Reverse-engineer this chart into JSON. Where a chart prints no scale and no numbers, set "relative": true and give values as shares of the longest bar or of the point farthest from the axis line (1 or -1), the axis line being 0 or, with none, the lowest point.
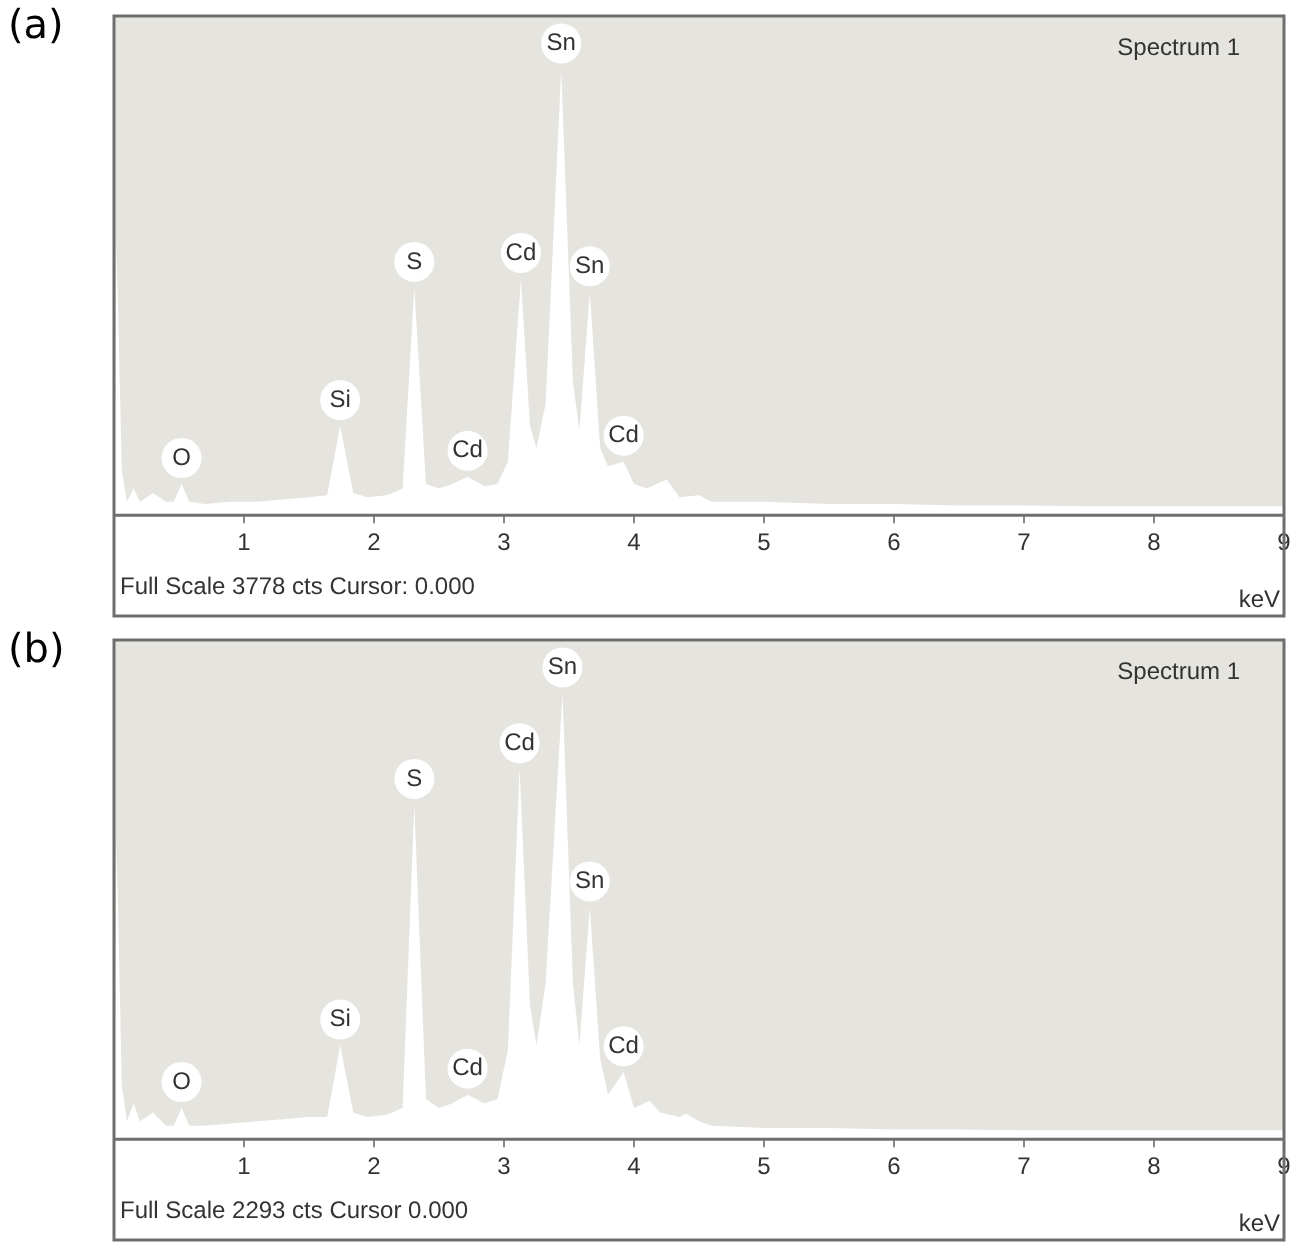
{
  "chart_data": [
    {
      "type": "area",
      "title": "(a)",
      "xlabel": "keV",
      "relative": true,
      "legend": false,
      "marker": "none",
      "xlim": [
        0,
        9
      ],
      "xticks": [
        1,
        2,
        3,
        4,
        5,
        6,
        7,
        8,
        9
      ],
      "x": [
        0.0,
        0.02,
        0.06,
        0.1,
        0.15,
        0.2,
        0.3,
        0.4,
        0.46,
        0.52,
        0.58,
        0.7,
        0.9,
        1.1,
        1.3,
        1.5,
        1.64,
        1.74,
        1.84,
        1.95,
        2.1,
        2.22,
        2.31,
        2.4,
        2.5,
        2.6,
        2.72,
        2.85,
        2.95,
        3.03,
        3.13,
        3.2,
        3.25,
        3.32,
        3.44,
        3.53,
        3.58,
        3.66,
        3.74,
        3.8,
        3.92,
        4.0,
        4.1,
        4.25,
        4.35,
        4.5,
        4.6,
        5.0,
        5.5,
        6.0,
        6.5,
        7.0,
        7.5,
        8.0,
        8.5,
        9.0
      ],
      "series": [
        {
          "color": "#ffffff",
          "values": [
            0,
            0.61,
            0.1,
            0.03,
            0.06,
            0.03,
            0.05,
            0.03,
            0.03,
            0.07,
            0.03,
            0.025,
            0.03,
            0.03,
            0.035,
            0.04,
            0.045,
            0.2,
            0.05,
            0.04,
            0.045,
            0.06,
            0.51,
            0.07,
            0.06,
            0.07,
            0.086,
            0.065,
            0.07,
            0.12,
            0.53,
            0.2,
            0.15,
            0.25,
            1.0,
            0.3,
            0.19,
            0.5,
            0.15,
            0.11,
            0.12,
            0.07,
            0.06,
            0.08,
            0.04,
            0.045,
            0.03,
            0.03,
            0.025,
            0.025,
            0.022,
            0.022,
            0.02,
            0.02,
            0.02,
            0.02
          ]
        }
      ],
      "annotations": [
        "Spectrum 1",
        "Full Scale 3778 cts Cursor: 0.000",
        {
          "text": "O",
          "x": 0.52,
          "y": 0.07
        },
        {
          "text": "Si",
          "x": 1.74,
          "y": 0.2
        },
        {
          "text": "S",
          "x": 2.31,
          "y": 0.51
        },
        {
          "text": "Cd",
          "x": 2.72,
          "y": 0.086
        },
        {
          "text": "Cd",
          "x": 3.13,
          "y": 0.53
        },
        {
          "text": "Sn",
          "x": 3.44,
          "y": 1.0
        },
        {
          "text": "Sn",
          "x": 3.66,
          "y": 0.5
        },
        {
          "text": "Cd",
          "x": 3.92,
          "y": 0.12
        }
      ]
    },
    {
      "type": "area",
      "title": "(b)",
      "xlabel": "keV",
      "relative": true,
      "legend": false,
      "marker": "none",
      "xlim": [
        0,
        9
      ],
      "xticks": [
        1,
        2,
        3,
        4,
        5,
        6,
        7,
        8,
        9
      ],
      "x": [
        0.0,
        0.02,
        0.06,
        0.1,
        0.15,
        0.2,
        0.3,
        0.4,
        0.46,
        0.52,
        0.58,
        0.7,
        0.9,
        1.1,
        1.3,
        1.5,
        1.64,
        1.74,
        1.84,
        1.95,
        2.1,
        2.22,
        2.31,
        2.4,
        2.5,
        2.6,
        2.72,
        2.85,
        2.95,
        3.03,
        3.12,
        3.2,
        3.25,
        3.32,
        3.45,
        3.53,
        3.58,
        3.66,
        3.74,
        3.8,
        3.92,
        4.0,
        4.12,
        4.2,
        4.35,
        4.4,
        4.5,
        4.6,
        5.0,
        5.5,
        6.0,
        6.5,
        7.0,
        7.5,
        8.0,
        8.5,
        9.0
      ],
      "series": [
        {
          "color": "#ffffff",
          "values": [
            0,
            0.67,
            0.12,
            0.04,
            0.08,
            0.04,
            0.06,
            0.03,
            0.03,
            0.07,
            0.03,
            0.03,
            0.035,
            0.04,
            0.045,
            0.05,
            0.05,
            0.21,
            0.06,
            0.05,
            0.055,
            0.07,
            0.75,
            0.09,
            0.07,
            0.08,
            0.1,
            0.08,
            0.09,
            0.2,
            0.83,
            0.3,
            0.21,
            0.35,
            1.0,
            0.35,
            0.21,
            0.52,
            0.18,
            0.1,
            0.15,
            0.07,
            0.086,
            0.06,
            0.05,
            0.057,
            0.04,
            0.03,
            0.025,
            0.025,
            0.022,
            0.022,
            0.02,
            0.02,
            0.02,
            0.02,
            0.02
          ]
        }
      ],
      "annotations": [
        "Spectrum 1",
        "Full Scale 2293 cts Cursor 0.000",
        {
          "text": "O",
          "x": 0.52,
          "y": 0.07
        },
        {
          "text": "Si",
          "x": 1.74,
          "y": 0.21
        },
        {
          "text": "S",
          "x": 2.31,
          "y": 0.75
        },
        {
          "text": "Cd",
          "x": 2.72,
          "y": 0.1
        },
        {
          "text": "Cd",
          "x": 3.12,
          "y": 0.83
        },
        {
          "text": "Sn",
          "x": 3.45,
          "y": 1.0
        },
        {
          "text": "Sn",
          "x": 3.66,
          "y": 0.52
        },
        {
          "text": "Cd",
          "x": 3.92,
          "y": 0.15
        }
      ]
    }
  ]
}
